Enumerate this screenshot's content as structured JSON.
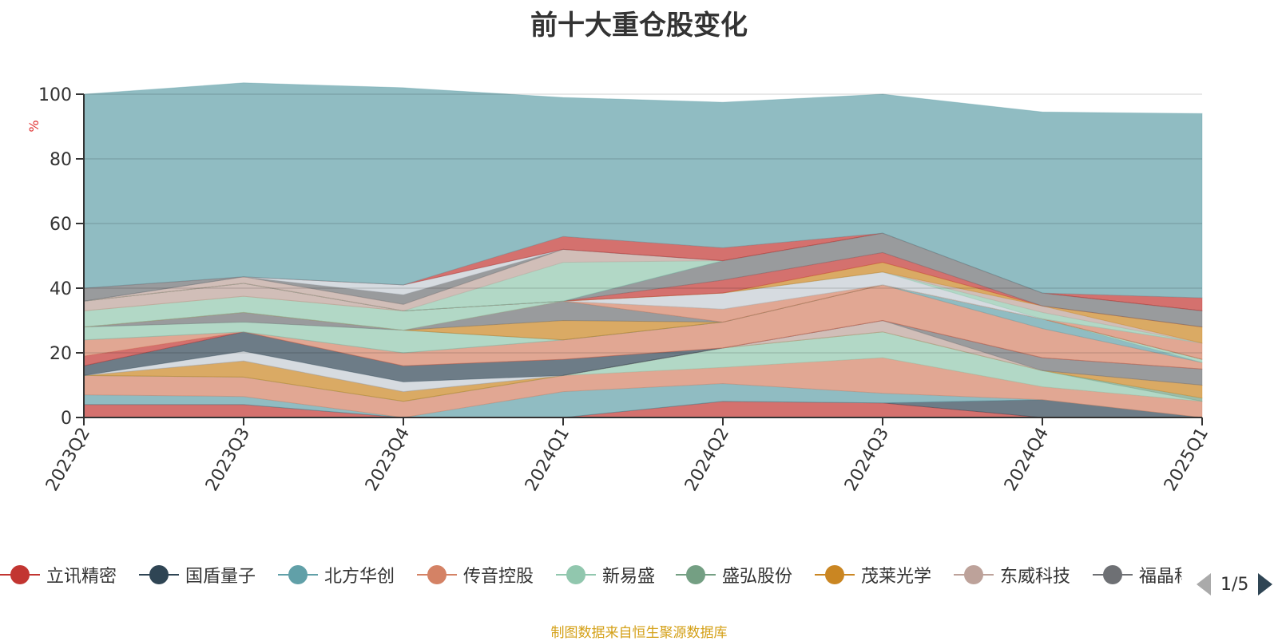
{
  "chart_data": {
    "type": "area",
    "title": "前十大重仓股变化",
    "ylabel": "%",
    "ylim": [
      0,
      100
    ],
    "yticks": [
      0,
      20,
      40,
      60,
      80,
      100
    ],
    "x": [
      "2023Q2",
      "2023Q3",
      "2023Q4",
      "2024Q1",
      "2024Q2",
      "2024Q3",
      "2024Q4",
      "2025Q1"
    ],
    "stacked": true,
    "grid": true,
    "series": [
      {
        "name": "立讯精密",
        "color": "#c23531",
        "values": [
          4,
          4,
          0,
          0,
          5,
          4.5,
          0,
          0
        ]
      },
      {
        "name": "国盾量子",
        "color": "#2f4554",
        "values": [
          0,
          0,
          0,
          0,
          0,
          0,
          5.5,
          0
        ]
      },
      {
        "name": "北方华创",
        "color": "#61a0a8",
        "values": [
          3,
          2.5,
          0,
          8,
          5.5,
          3,
          0,
          0
        ]
      },
      {
        "name": "传音控股",
        "color": "#d48265",
        "values": [
          6,
          6,
          5,
          5,
          5,
          11,
          4,
          5
        ]
      },
      {
        "name": "新易盛",
        "color": "#91c7ae",
        "values": [
          0,
          0,
          0,
          0,
          6,
          8,
          5,
          0
        ]
      },
      {
        "name": "盛弘股份",
        "color": "#749f83",
        "values": [
          0,
          0,
          0,
          0,
          0,
          0,
          0,
          1
        ]
      },
      {
        "name": "茂莱光学",
        "color": "#ca8622",
        "values": [
          0,
          5,
          3,
          0,
          0,
          0,
          0,
          4
        ]
      },
      {
        "name": "东威科技",
        "color": "#bda29a",
        "values": [
          0,
          0,
          0,
          0,
          0,
          3.5,
          0,
          0
        ]
      },
      {
        "name": "福晶科技",
        "color": "#6e7074",
        "values": [
          0,
          0,
          0,
          0,
          0,
          0,
          4,
          5
        ]
      },
      {
        "name": "",
        "color": "#c4ccd3",
        "values": [
          0,
          3,
          3,
          0,
          0,
          0,
          0,
          0
        ]
      },
      {
        "name": "",
        "color": "#2f4554",
        "values": [
          3,
          6,
          5,
          5,
          0,
          0,
          0,
          0
        ]
      },
      {
        "name": "",
        "color": "#c23531",
        "values": [
          3,
          0,
          0,
          0,
          0,
          0,
          0,
          0
        ]
      },
      {
        "name": "",
        "color": "#d48265",
        "values": [
          5,
          0,
          4,
          6,
          8,
          11,
          9,
          2
        ]
      },
      {
        "name": "",
        "color": "#61a0a8",
        "values": [
          0,
          0,
          0,
          0,
          0,
          0,
          3,
          0
        ]
      },
      {
        "name": "",
        "color": "#91c7ae",
        "values": [
          4,
          3,
          7,
          0,
          0,
          0,
          0,
          1
        ]
      },
      {
        "name": "",
        "color": "#6e7074",
        "values": [
          0,
          3,
          0,
          0,
          0,
          0,
          0,
          0
        ]
      },
      {
        "name": "",
        "color": "#ca8622",
        "values": [
          0,
          0,
          0,
          6,
          0,
          0,
          0,
          0
        ]
      },
      {
        "name": "",
        "color": "#6e7074",
        "values": [
          0,
          0,
          0,
          6,
          0,
          0,
          0,
          0
        ]
      },
      {
        "name": "",
        "color": "#d48265",
        "values": [
          0,
          0,
          0,
          0,
          4,
          0,
          0,
          0
        ]
      },
      {
        "name": "",
        "color": "#91c7ae",
        "values": [
          5,
          5,
          6,
          0,
          0,
          0,
          0,
          0
        ]
      },
      {
        "name": "",
        "color": "#d48265",
        "values": [
          0,
          0,
          0,
          0,
          0,
          0,
          0,
          5
        ]
      },
      {
        "name": "",
        "color": "#bda29a",
        "values": [
          3,
          4,
          0,
          0,
          0,
          0,
          0,
          0
        ]
      },
      {
        "name": "",
        "color": "#c4ccd3",
        "values": [
          0,
          0,
          0,
          0,
          5,
          4,
          0,
          0
        ]
      },
      {
        "name": "",
        "color": "#91c7ae",
        "values": [
          0,
          0,
          0,
          0,
          0,
          0,
          2,
          0
        ]
      },
      {
        "name": "",
        "color": "#bda29a",
        "values": [
          0,
          0,
          0,
          0,
          0,
          0,
          2,
          0
        ]
      },
      {
        "name": "",
        "color": "#ca8622",
        "values": [
          0,
          0,
          0,
          0,
          0,
          3,
          0,
          5
        ]
      },
      {
        "name": "",
        "color": "#c23531",
        "values": [
          0,
          0,
          0,
          0,
          4,
          3,
          0,
          0
        ]
      },
      {
        "name": "",
        "color": "#6e7074",
        "values": [
          0,
          0,
          0,
          0,
          6,
          6,
          4,
          5
        ]
      },
      {
        "name": "",
        "color": "#61a0a8",
        "values": [
          0,
          0,
          0,
          0,
          0,
          0,
          0,
          0
        ]
      },
      {
        "name": "",
        "color": "#91c7ae",
        "values": [
          0,
          0,
          0,
          12,
          0,
          0,
          0,
          0
        ]
      },
      {
        "name": "",
        "color": "#bda29a",
        "values": [
          0,
          2,
          2,
          4,
          0,
          0,
          0,
          0
        ]
      },
      {
        "name": "",
        "color": "#6e7074",
        "values": [
          0,
          0,
          3,
          0,
          0,
          0,
          0,
          0
        ]
      },
      {
        "name": "",
        "color": "#c4ccd3",
        "values": [
          0,
          0,
          3,
          0,
          0,
          0,
          0,
          0
        ]
      },
      {
        "name": "",
        "color": "#6e7074",
        "values": [
          4,
          0,
          0,
          0,
          0,
          0,
          0,
          0
        ]
      },
      {
        "name": "",
        "color": "#c23531",
        "values": [
          0,
          0,
          0,
          4,
          4,
          0,
          0,
          4
        ]
      },
      {
        "name": "",
        "color": "#61a0a8",
        "values": [
          60,
          60,
          61,
          43,
          45,
          43,
          56,
          57
        ]
      }
    ]
  },
  "legend": {
    "items": [
      {
        "label": "立讯精密",
        "color": "#c23531",
        "icon": "circle"
      },
      {
        "label": "国盾量子",
        "color": "#2f4554",
        "icon": "circle"
      },
      {
        "label": "北方华创",
        "color": "#61a0a8",
        "icon": "circle"
      },
      {
        "label": "传音控股",
        "color": "#d48265",
        "icon": "circle"
      },
      {
        "label": "新易盛",
        "color": "#91c7ae",
        "icon": "circle"
      },
      {
        "label": "盛弘股份",
        "color": "#749f83",
        "icon": "circle"
      },
      {
        "label": "茂莱光学",
        "color": "#ca8622",
        "icon": "circle"
      },
      {
        "label": "东威科技",
        "color": "#bda29a",
        "icon": "circle"
      },
      {
        "label": "福晶科技",
        "color": "#6e7074",
        "icon": "circle"
      }
    ],
    "page": "1/5"
  },
  "source": "制图数据来自恒生聚源数据库"
}
